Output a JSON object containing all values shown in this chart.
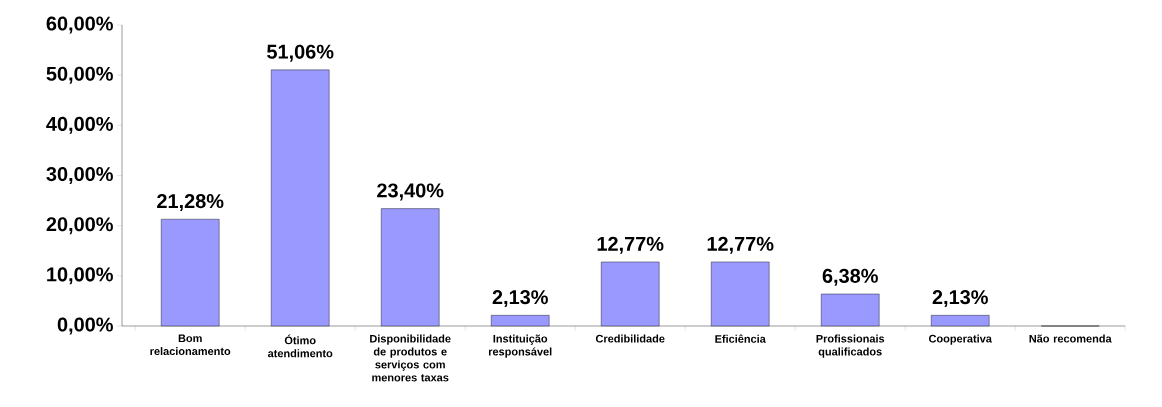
{
  "chart_data": {
    "type": "bar",
    "categories": [
      "Bom relacionamento",
      "Ótimo atendimento",
      "Disponibilidade de produtos e serviços com menores taxas",
      "Instituição responsável",
      "Credibilidade",
      "Eficiência",
      "Profissionais qualificados",
      "Cooperativa",
      "Não recomenda"
    ],
    "values": [
      21.28,
      51.06,
      23.4,
      2.13,
      12.77,
      12.77,
      6.38,
      2.13,
      0
    ],
    "value_labels": [
      "21,28%",
      "51,06%",
      "23,40%",
      "2,13%",
      "12,77%",
      "12,77%",
      "6,38%",
      "2,13%",
      null
    ],
    "color": "#9999ff",
    "ylim": [
      0,
      60
    ],
    "yticks": [
      {
        "value": 0,
        "label": "0,00%"
      },
      {
        "value": 10,
        "label": "10,00%"
      },
      {
        "value": 20,
        "label": "20,00%"
      },
      {
        "value": 30,
        "label": "30,00%"
      },
      {
        "value": 40,
        "label": "40,00%"
      },
      {
        "value": 50,
        "label": "50,00%"
      },
      {
        "value": 60,
        "label": "60,00%"
      }
    ]
  }
}
